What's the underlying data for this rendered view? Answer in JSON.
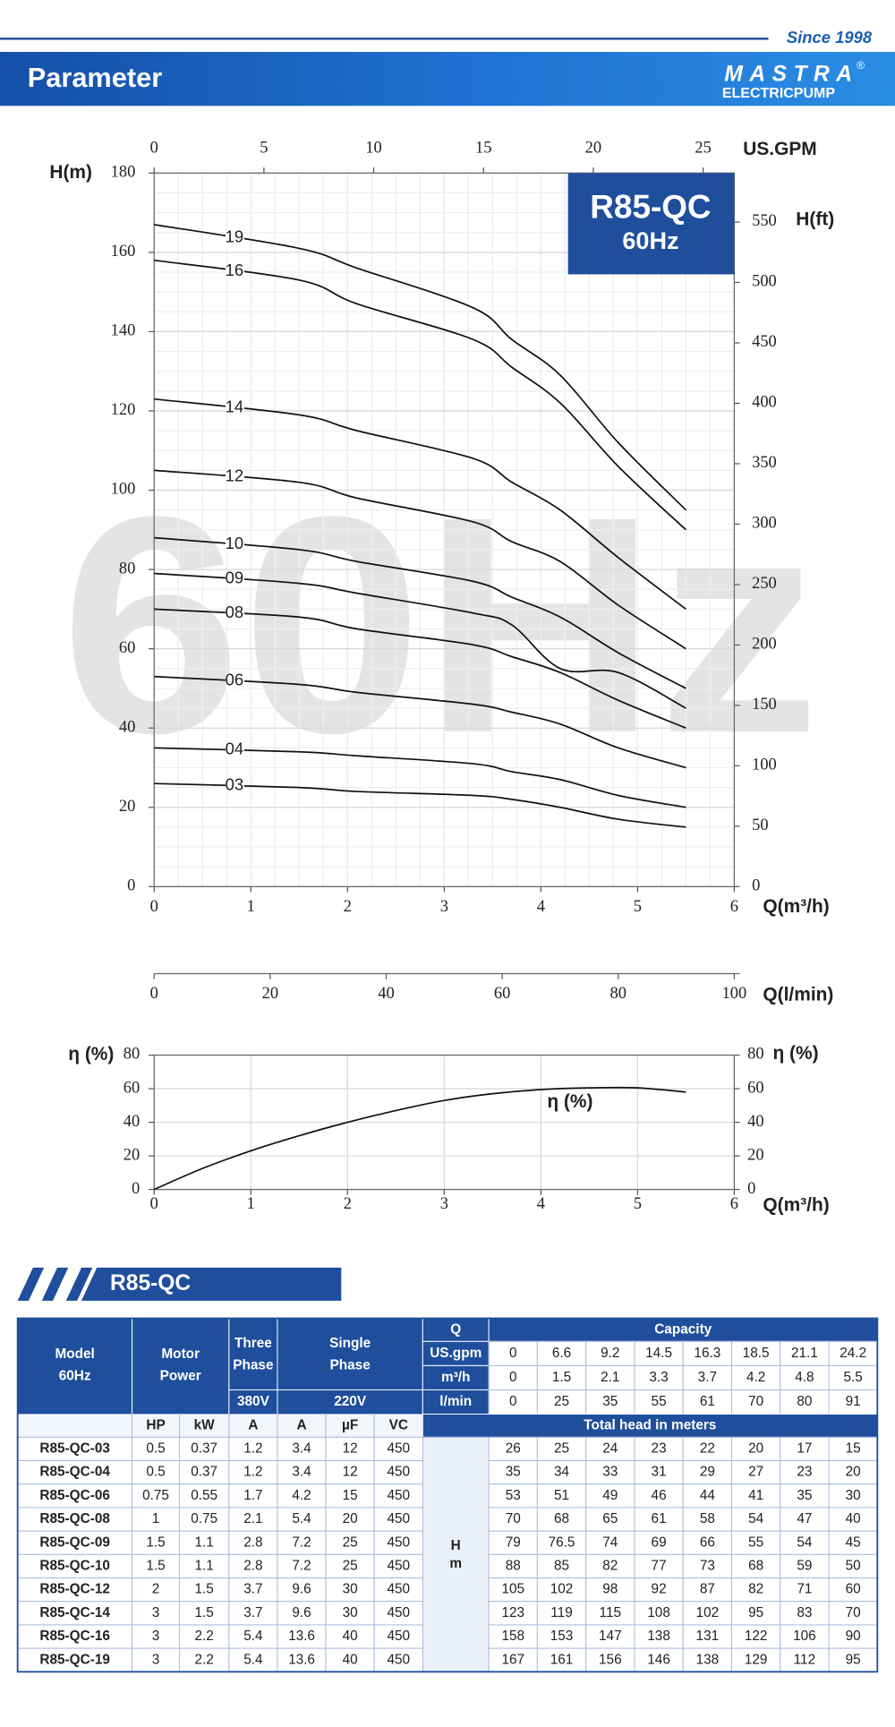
{
  "header": {
    "since": "Since 1998",
    "title": "Parameter",
    "logo": {
      "brand": "MASTRA",
      "registered": "®",
      "tagline": "ELECTRICPUMP"
    }
  },
  "watermark": "60Hz",
  "performance_chart": {
    "type": "line",
    "model": "R85-QC",
    "frequency": "60Hz",
    "y_label": "H(m)",
    "y2_label": "H(ft)",
    "x_label": "Q(m³/h)",
    "x2_label": "US.GPM",
    "xlim": [
      0,
      6
    ],
    "xticks": [
      0,
      1,
      2,
      3,
      4,
      5,
      6
    ],
    "x2lim": [
      0,
      26.42
    ],
    "x2ticks": [
      0,
      5,
      10,
      15,
      20,
      25
    ],
    "ylim": [
      0,
      180
    ],
    "yticks": [
      0,
      20,
      40,
      60,
      80,
      100,
      120,
      140,
      160,
      180
    ],
    "y2lim": [
      0,
      590.55
    ],
    "y2ticks": [
      0,
      50,
      100,
      150,
      200,
      250,
      300,
      350,
      400,
      450,
      500,
      550
    ],
    "curve_labels": [
      "03",
      "04",
      "06",
      "08",
      "09",
      "10",
      "12",
      "14",
      "16",
      "19"
    ],
    "color": "#111111",
    "grid": true
  },
  "q_lmin_axis": {
    "label": "Q(l/min)",
    "xlim": [
      0,
      100
    ],
    "xticks": [
      0,
      20,
      40,
      60,
      80,
      100
    ]
  },
  "efficiency_chart": {
    "type": "line",
    "y_label": "η (%)",
    "y2_label": "η (%)",
    "x_label": "Q(m³/h)",
    "curve_label": "η (%)",
    "xlim": [
      0,
      6
    ],
    "xticks": [
      0,
      1,
      2,
      3,
      4,
      5,
      6
    ],
    "ylim": [
      0,
      80
    ],
    "yticks": [
      0,
      20,
      40,
      60,
      80
    ],
    "y2lim": [
      0,
      80
    ],
    "y2ticks": [
      0,
      20,
      40,
      60,
      80
    ],
    "x": [
      0,
      0.5,
      1,
      1.5,
      2,
      2.5,
      3,
      3.5,
      4,
      4.5,
      5,
      5.5
    ],
    "values": [
      0,
      12.5,
      23,
      32,
      40,
      47,
      53,
      57,
      59.5,
      60.5,
      60.5,
      58
    ],
    "color": "#111111",
    "grid": true
  },
  "table_section": {
    "title": "R85-QC"
  },
  "table": {
    "header": {
      "model": [
        "Model",
        "60Hz"
      ],
      "motor_power": [
        "Motor",
        "Power"
      ],
      "three_phase": [
        "Three",
        "Phase"
      ],
      "single_phase": [
        "Single",
        "Phase"
      ],
      "q": "Q",
      "capacity": "Capacity",
      "three_voltage": "380V",
      "single_voltage": "220V",
      "units": [
        "HP",
        "kW",
        "A",
        "A",
        "µF",
        "VC"
      ],
      "total_head": "Total head in meters",
      "head_unit": [
        "H",
        "m"
      ]
    },
    "capacity_rows": [
      {
        "label": "US.gpm",
        "values": [
          0,
          6.6,
          9.2,
          14.5,
          16.3,
          18.5,
          21.1,
          24.2
        ]
      },
      {
        "label": "m³/h",
        "values": [
          0,
          1.5,
          2.1,
          3.3,
          3.7,
          4.2,
          4.8,
          5.5
        ]
      },
      {
        "label": "l/min",
        "values": [
          0,
          25,
          35,
          55,
          61,
          70,
          80,
          91
        ]
      }
    ],
    "rows": [
      {
        "model": "R85-QC-03",
        "hp": 0.5,
        "kw": 0.37,
        "three_a": 1.2,
        "single_a": 3.4,
        "uf": 12,
        "vc": 450,
        "head": [
          26,
          25,
          24,
          23,
          22,
          20,
          17,
          15
        ]
      },
      {
        "model": "R85-QC-04",
        "hp": 0.5,
        "kw": 0.37,
        "three_a": 1.2,
        "single_a": 3.4,
        "uf": 12,
        "vc": 450,
        "head": [
          35,
          34,
          33,
          31,
          29,
          27,
          23,
          20
        ]
      },
      {
        "model": "R85-QC-06",
        "hp": 0.75,
        "kw": 0.55,
        "three_a": 1.7,
        "single_a": 4.2,
        "uf": 15,
        "vc": 450,
        "head": [
          53,
          51,
          49,
          46,
          44,
          41,
          35,
          30
        ]
      },
      {
        "model": "R85-QC-08",
        "hp": 1,
        "kw": 0.75,
        "three_a": 2.1,
        "single_a": 5.4,
        "uf": 20,
        "vc": 450,
        "head": [
          70,
          68,
          65,
          61,
          58,
          54,
          47,
          40
        ]
      },
      {
        "model": "R85-QC-09",
        "hp": 1.5,
        "kw": 1.1,
        "three_a": 2.8,
        "single_a": 7.2,
        "uf": 25,
        "vc": 450,
        "head": [
          79,
          76.5,
          74,
          69,
          66,
          55,
          54,
          45
        ]
      },
      {
        "model": "R85-QC-10",
        "hp": 1.5,
        "kw": 1.1,
        "three_a": 2.8,
        "single_a": 7.2,
        "uf": 25,
        "vc": 450,
        "head": [
          88,
          85,
          82,
          77,
          73,
          68,
          59,
          50
        ]
      },
      {
        "model": "R85-QC-12",
        "hp": 2,
        "kw": 1.5,
        "three_a": 3.7,
        "single_a": 9.6,
        "uf": 30,
        "vc": 450,
        "head": [
          105,
          102,
          98,
          92,
          87,
          82,
          71,
          60
        ]
      },
      {
        "model": "R85-QC-14",
        "hp": 3,
        "kw": 1.5,
        "three_a": 3.7,
        "single_a": 9.6,
        "uf": 30,
        "vc": 450,
        "head": [
          123,
          119,
          115,
          108,
          102,
          95,
          83,
          70
        ]
      },
      {
        "model": "R85-QC-16",
        "hp": 3,
        "kw": 2.2,
        "three_a": 5.4,
        "single_a": 13.6,
        "uf": 40,
        "vc": 450,
        "head": [
          158,
          153,
          147,
          138,
          131,
          122,
          106,
          90
        ]
      },
      {
        "model": "R85-QC-19",
        "hp": 3,
        "kw": 2.2,
        "three_a": 5.4,
        "single_a": 13.6,
        "uf": 40,
        "vc": 450,
        "head": [
          167,
          161,
          156,
          146,
          138,
          129,
          112,
          95
        ]
      }
    ]
  }
}
